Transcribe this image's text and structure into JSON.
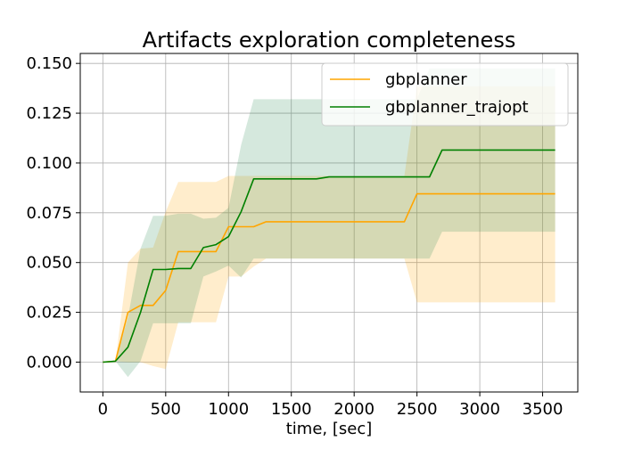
{
  "chart_data": {
    "type": "line",
    "title": "Artifacts exploration completeness",
    "xlabel": "time, [sec]",
    "ylabel": "",
    "xlim": [
      -180,
      3780
    ],
    "ylim": [
      -0.015,
      0.155
    ],
    "xticks": [
      0,
      500,
      1000,
      1500,
      2000,
      2500,
      3000,
      3500
    ],
    "xtick_labels": [
      "0",
      "500",
      "1000",
      "1500",
      "2000",
      "2500",
      "3000",
      "3500"
    ],
    "yticks": [
      0.0,
      0.025,
      0.05,
      0.075,
      0.1,
      0.125,
      0.15
    ],
    "ytick_labels": [
      "0.000",
      "0.025",
      "0.050",
      "0.075",
      "0.100",
      "0.125",
      "0.150"
    ],
    "grid": true,
    "legend_position": "top-right",
    "series": [
      {
        "name": "gbplanner",
        "color": "#ffa500",
        "band_color": "#ffa500",
        "x": [
          0,
          100,
          200,
          300,
          400,
          500,
          600,
          700,
          800,
          900,
          1000,
          1100,
          1200,
          1300,
          1400,
          1500,
          1600,
          1700,
          1800,
          1900,
          2000,
          2100,
          2200,
          2300,
          2400,
          2500,
          2600,
          2700,
          2800,
          2900,
          3000,
          3100,
          3200,
          3300,
          3400,
          3500,
          3600
        ],
        "values": [
          0.0,
          0.0005,
          0.025,
          0.0285,
          0.0285,
          0.036,
          0.0555,
          0.0555,
          0.0555,
          0.0555,
          0.068,
          0.068,
          0.068,
          0.0705,
          0.0705,
          0.0705,
          0.0705,
          0.0705,
          0.0705,
          0.0705,
          0.0705,
          0.0705,
          0.0705,
          0.0705,
          0.0705,
          0.0845,
          0.0845,
          0.0845,
          0.0845,
          0.0845,
          0.0845,
          0.0845,
          0.0845,
          0.0845,
          0.0845,
          0.0845,
          0.0845
        ],
        "lower": [
          0.0,
          0.0005,
          0.0,
          0.0,
          -0.002,
          -0.0035,
          0.02,
          0.02,
          0.02,
          0.02,
          0.043,
          0.043,
          0.048,
          0.052,
          0.052,
          0.052,
          0.052,
          0.052,
          0.052,
          0.052,
          0.052,
          0.052,
          0.052,
          0.052,
          0.052,
          0.03,
          0.03,
          0.03,
          0.03,
          0.03,
          0.03,
          0.03,
          0.03,
          0.03,
          0.03,
          0.03,
          0.03
        ],
        "upper": [
          0.0,
          0.0005,
          0.05,
          0.057,
          0.0575,
          0.0755,
          0.0905,
          0.0905,
          0.0905,
          0.0905,
          0.0935,
          0.0935,
          0.0935,
          0.0935,
          0.0935,
          0.0935,
          0.0935,
          0.0935,
          0.0935,
          0.0935,
          0.0935,
          0.0935,
          0.0935,
          0.0935,
          0.0935,
          0.1385,
          0.1385,
          0.1385,
          0.1385,
          0.1385,
          0.1385,
          0.1385,
          0.1385,
          0.1385,
          0.1385,
          0.1385,
          0.1385
        ]
      },
      {
        "name": "gbplanner_trajopt",
        "color": "#008000",
        "band_color": "#2e8b57",
        "x": [
          0,
          100,
          200,
          300,
          400,
          500,
          600,
          700,
          800,
          900,
          1000,
          1100,
          1200,
          1300,
          1400,
          1500,
          1600,
          1700,
          1800,
          1900,
          2000,
          2100,
          2200,
          2300,
          2400,
          2500,
          2600,
          2700,
          2800,
          2900,
          3000,
          3100,
          3200,
          3300,
          3400,
          3500,
          3600
        ],
        "values": [
          0.0,
          0.0005,
          0.0075,
          0.025,
          0.0465,
          0.0465,
          0.047,
          0.047,
          0.0575,
          0.059,
          0.063,
          0.0755,
          0.092,
          0.092,
          0.092,
          0.092,
          0.092,
          0.092,
          0.093,
          0.093,
          0.093,
          0.093,
          0.093,
          0.093,
          0.093,
          0.093,
          0.093,
          0.1065,
          0.1065,
          0.1065,
          0.1065,
          0.1065,
          0.1065,
          0.1065,
          0.1065,
          0.1065,
          0.1065
        ],
        "lower": [
          0.0,
          0.0005,
          -0.0075,
          0.0005,
          0.0195,
          0.0195,
          0.0195,
          0.0195,
          0.043,
          0.0455,
          0.0485,
          0.0425,
          0.052,
          0.052,
          0.052,
          0.052,
          0.052,
          0.052,
          0.052,
          0.052,
          0.052,
          0.052,
          0.052,
          0.052,
          0.052,
          0.052,
          0.052,
          0.0655,
          0.0655,
          0.0655,
          0.0655,
          0.0655,
          0.0655,
          0.0655,
          0.0655,
          0.0655,
          0.0655
        ],
        "upper": [
          0.0,
          0.0005,
          0.0225,
          0.057,
          0.0735,
          0.0735,
          0.0745,
          0.0745,
          0.072,
          0.0725,
          0.0775,
          0.109,
          0.132,
          0.132,
          0.132,
          0.132,
          0.132,
          0.132,
          0.132,
          0.132,
          0.132,
          0.132,
          0.132,
          0.132,
          0.132,
          0.132,
          0.1475,
          0.1475,
          0.1475,
          0.1475,
          0.1475,
          0.1475,
          0.1475,
          0.1475,
          0.1475,
          0.1475,
          0.1475
        ]
      }
    ]
  }
}
